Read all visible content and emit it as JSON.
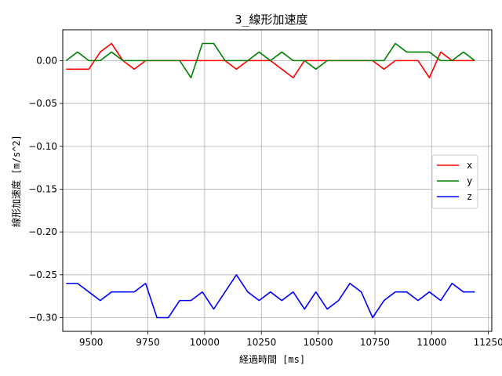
{
  "chart_data": {
    "type": "line",
    "title": "3_線形加速度",
    "xlabel": "経過時間 [ms]",
    "ylabel": "線形加速度 [m/s^2]",
    "xlim": [
      9375,
      11265
    ],
    "ylim": [
      -0.316,
      0.036
    ],
    "xticks": [
      9500,
      9750,
      10000,
      10250,
      10500,
      10750,
      11000,
      11250
    ],
    "yticks": [
      0.0,
      -0.05,
      -0.1,
      -0.15,
      -0.2,
      -0.25,
      -0.3
    ],
    "xtick_labels": [
      "9500",
      "9750",
      "10000",
      "10250",
      "10500",
      "10750",
      "11000",
      "11250"
    ],
    "ytick_labels": [
      "0.00",
      "−0.05",
      "−0.10",
      "−0.15",
      "−0.20",
      "−0.25",
      "−0.30"
    ],
    "grid": true,
    "legend_position": "right",
    "x": [
      9390,
      9440,
      9490,
      9540,
      9590,
      9640,
      9690,
      9740,
      9790,
      9840,
      9890,
      9940,
      9990,
      10040,
      10090,
      10140,
      10190,
      10240,
      10290,
      10340,
      10390,
      10440,
      10490,
      10540,
      10590,
      10640,
      10690,
      10740,
      10790,
      10840,
      10890,
      10940,
      10990,
      11040,
      11090,
      11140,
      11190
    ],
    "series": [
      {
        "name": "x",
        "color": "#ff0000",
        "values": [
          -0.01,
          -0.01,
          -0.01,
          0.01,
          0.02,
          0.0,
          -0.01,
          0.0,
          0.0,
          0.0,
          0.0,
          0.0,
          0.0,
          0.0,
          0.0,
          -0.01,
          0.0,
          0.0,
          0.0,
          -0.01,
          -0.02,
          0.0,
          0.0,
          0.0,
          0.0,
          0.0,
          0.0,
          0.0,
          -0.01,
          0.0,
          0.0,
          0.0,
          -0.02,
          0.01,
          0.0,
          0.0,
          0.0
        ]
      },
      {
        "name": "y",
        "color": "#008000",
        "values": [
          0.0,
          0.01,
          0.0,
          0.0,
          0.01,
          0.0,
          0.0,
          0.0,
          0.0,
          0.0,
          0.0,
          -0.02,
          0.02,
          0.02,
          0.0,
          0.0,
          0.0,
          0.01,
          0.0,
          0.01,
          0.0,
          0.0,
          -0.01,
          0.0,
          0.0,
          0.0,
          0.0,
          0.0,
          0.0,
          0.02,
          0.01,
          0.01,
          0.01,
          0.0,
          0.0,
          0.01,
          0.0
        ]
      },
      {
        "name": "z",
        "color": "#0000ff",
        "values": [
          -0.26,
          -0.26,
          -0.27,
          -0.28,
          -0.27,
          -0.27,
          -0.27,
          -0.26,
          -0.3,
          -0.3,
          -0.28,
          -0.28,
          -0.27,
          -0.29,
          -0.27,
          -0.25,
          -0.27,
          -0.28,
          -0.27,
          -0.28,
          -0.27,
          -0.29,
          -0.27,
          -0.29,
          -0.28,
          -0.26,
          -0.27,
          -0.3,
          -0.28,
          -0.27,
          -0.27,
          -0.28,
          -0.27,
          -0.28,
          -0.26,
          -0.27,
          -0.27
        ]
      }
    ]
  }
}
